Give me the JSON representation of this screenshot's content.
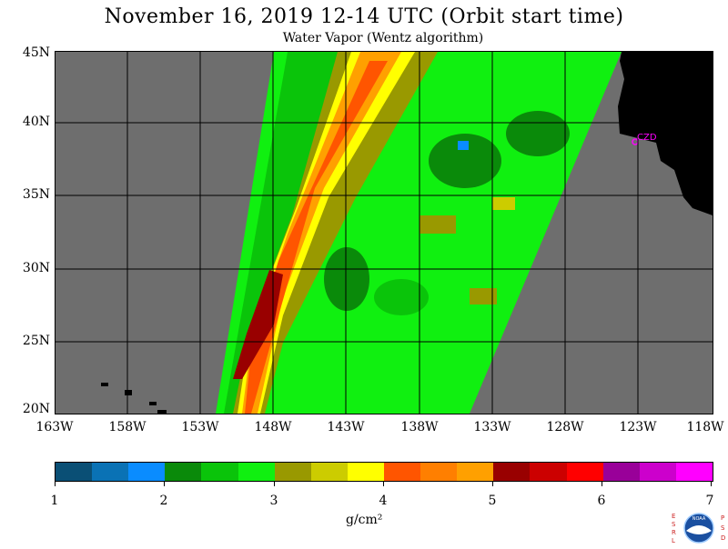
{
  "header": {
    "title": "November 16, 2019  12-14 UTC  (Orbit start time)",
    "subtitle": "Water Vapor (Wentz algorithm)"
  },
  "map": {
    "lat_labels": [
      "45N",
      "40N",
      "35N",
      "30N",
      "25N",
      "20N"
    ],
    "lon_labels": [
      "163W",
      "158W",
      "153W",
      "148W",
      "143W",
      "138W",
      "133W",
      "128W",
      "123W",
      "118W"
    ],
    "site_label": "CZD",
    "background_color": "#6e6e6e",
    "land_color": "#000000",
    "grid_color": "#000000"
  },
  "colorbar": {
    "labels": [
      "1",
      "2",
      "3",
      "4",
      "5",
      "6",
      "7"
    ],
    "units": "g/cm²",
    "colors": [
      "#0a4f75",
      "#0a72b5",
      "#0a8cff",
      "#0a8a0a",
      "#0ac40a",
      "#10f010",
      "#999900",
      "#cccc00",
      "#ffff00",
      "#ff5500",
      "#ff7f00",
      "#ffa000",
      "#990000",
      "#cc0000",
      "#ff0000",
      "#990099",
      "#cc00cc",
      "#ff00ff"
    ]
  },
  "logo": {
    "left_letters": [
      "E",
      "S",
      "R",
      "L"
    ],
    "right_letters": [
      "P",
      "S",
      "D"
    ],
    "text": "NOAA"
  }
}
